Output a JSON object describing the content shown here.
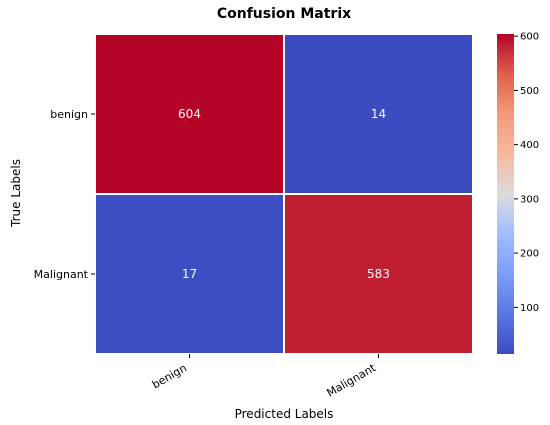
{
  "chart_data": {
    "type": "heatmap",
    "title": "Confusion Matrix",
    "xlabel": "Predicted Labels",
    "ylabel": "True Labels",
    "x_categories": [
      "benign",
      "Malignant"
    ],
    "y_categories": [
      "benign",
      "Malignant"
    ],
    "values": [
      [
        604,
        14
      ],
      [
        17,
        583
      ]
    ],
    "cell_labels": [
      [
        "604",
        "14"
      ],
      [
        "17",
        "583"
      ]
    ],
    "colormap": "coolwarm",
    "color_range": [
      14,
      604
    ],
    "colorbar_ticks": [
      100,
      200,
      300,
      400,
      500,
      600
    ],
    "colorbar_tick_labels": [
      "100",
      "200",
      "300",
      "400",
      "500",
      "600"
    ],
    "cell_text_color": "#ffffff",
    "grid_line_color": "#ffffff"
  }
}
